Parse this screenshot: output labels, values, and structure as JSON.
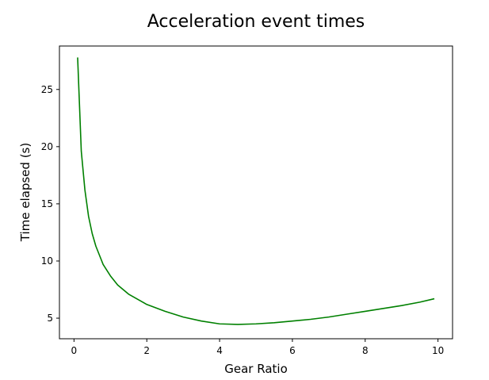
{
  "chart_data": {
    "type": "line",
    "title": "Acceleration event times",
    "xlabel": "Gear Ratio",
    "ylabel": "Time elapsed (s)",
    "xlim": [
      -0.4,
      10.4
    ],
    "ylim": [
      3.2,
      28.8
    ],
    "xticks": [
      0,
      2,
      4,
      6,
      8,
      10
    ],
    "xtick_labels": [
      "0",
      "2",
      "4",
      "6",
      "8",
      "10"
    ],
    "yticks": [
      5,
      10,
      15,
      20,
      25
    ],
    "ytick_labels": [
      "5",
      "10",
      "15",
      "20",
      "25"
    ],
    "grid": false,
    "series": [
      {
        "color": "#008000",
        "x": [
          0.1,
          0.2,
          0.3,
          0.4,
          0.5,
          0.6,
          0.8,
          1.0,
          1.2,
          1.5,
          2.0,
          2.5,
          3.0,
          3.5,
          4.0,
          4.5,
          5.0,
          5.5,
          6.0,
          6.5,
          7.0,
          7.5,
          8.0,
          8.5,
          9.0,
          9.5,
          9.9
        ],
        "y": [
          27.8,
          19.6,
          16.2,
          13.9,
          12.4,
          11.3,
          9.7,
          8.7,
          7.9,
          7.1,
          6.2,
          5.6,
          5.1,
          4.75,
          4.5,
          4.45,
          4.5,
          4.6,
          4.75,
          4.9,
          5.1,
          5.35,
          5.6,
          5.85,
          6.1,
          6.4,
          6.7
        ]
      }
    ]
  }
}
